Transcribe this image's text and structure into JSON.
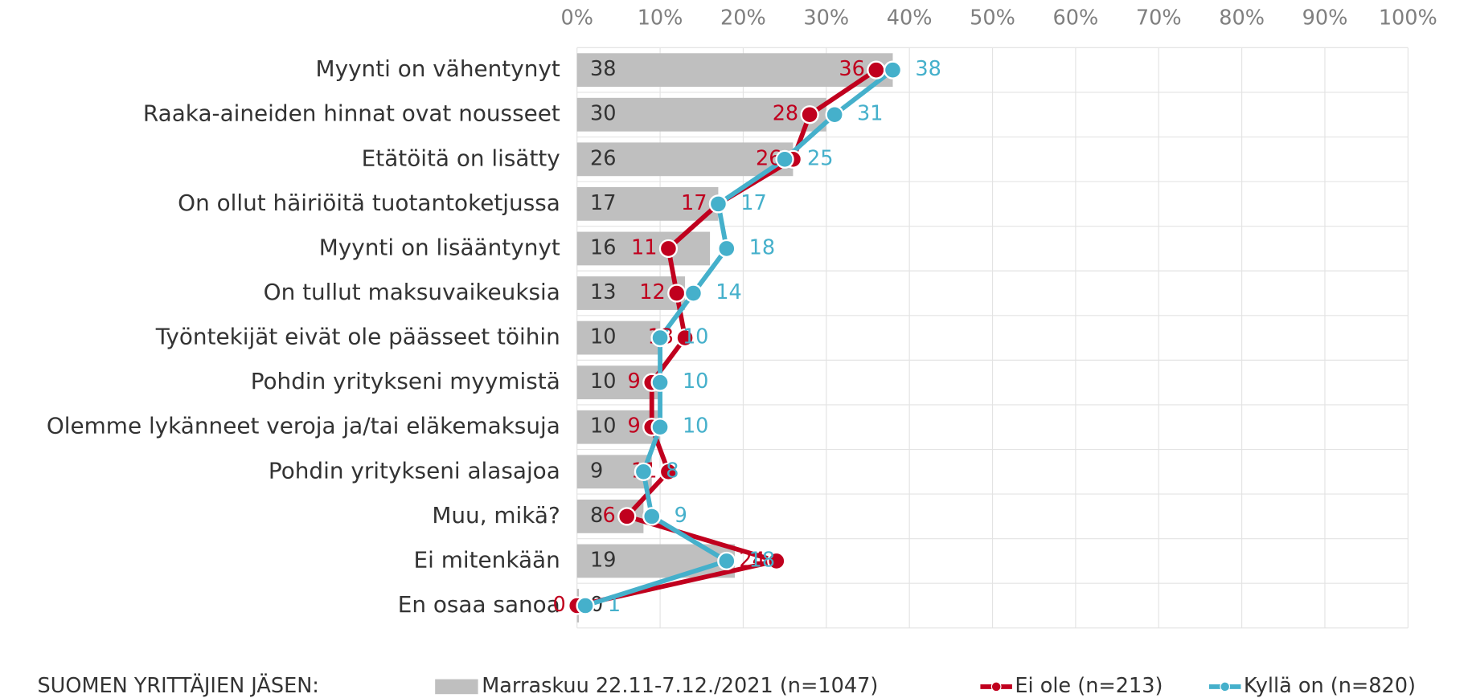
{
  "chart_data": {
    "type": "bar",
    "orientation": "horizontal",
    "categories": [
      "Myynti on vähentynyt",
      "Raaka-aineiden hinnat ovat nousseet",
      "Etätöitä on lisätty",
      "On ollut häiriöitä tuotantoketjussa",
      "Myynti on lisääntynyt",
      "On tullut maksuvaikeuksia",
      "Työntekijät eivät ole päässeet töihin",
      "Pohdin yritykseni myymistä",
      "Olemme lykänneet veroja ja/tai eläkemaksuja",
      "Pohdin yritykseni alasajoa",
      "Muu, mikä?",
      "Ei mitenkään",
      "En osaa sanoa"
    ],
    "series": [
      {
        "name": "Marraskuu 22.11-7.12./2021 (n=1047)",
        "type": "bar",
        "color": "#bfbfbf",
        "values": [
          38,
          30,
          26,
          17,
          16,
          13,
          10,
          10,
          10,
          9,
          8,
          19,
          0
        ]
      },
      {
        "name": "Ei ole (n=213)",
        "type": "line",
        "color": "#c0001e",
        "values": [
          36,
          28,
          26,
          17,
          11,
          12,
          13,
          9,
          9,
          11,
          6,
          24,
          0
        ]
      },
      {
        "name": "Kyllä on (n=820)",
        "type": "line",
        "color": "#45b0cb",
        "values": [
          38,
          31,
          25,
          17,
          18,
          14,
          10,
          10,
          10,
          8,
          9,
          18,
          1
        ]
      }
    ],
    "xlim": [
      0,
      100
    ],
    "xticks": [
      {
        "value": 0,
        "label": "0%"
      },
      {
        "value": 10,
        "label": "10%"
      },
      {
        "value": 20,
        "label": "20%"
      },
      {
        "value": 30,
        "label": "30%"
      },
      {
        "value": 40,
        "label": "40%"
      },
      {
        "value": 50,
        "label": "50%"
      },
      {
        "value": 60,
        "label": "60%"
      },
      {
        "value": 70,
        "label": "70%"
      },
      {
        "value": 80,
        "label": "80%"
      },
      {
        "value": 90,
        "label": "90%"
      },
      {
        "value": 100,
        "label": "100%"
      }
    ],
    "legend_title": "SUOMEN YRITTÄJIEN JÄSEN:",
    "grid": true
  }
}
